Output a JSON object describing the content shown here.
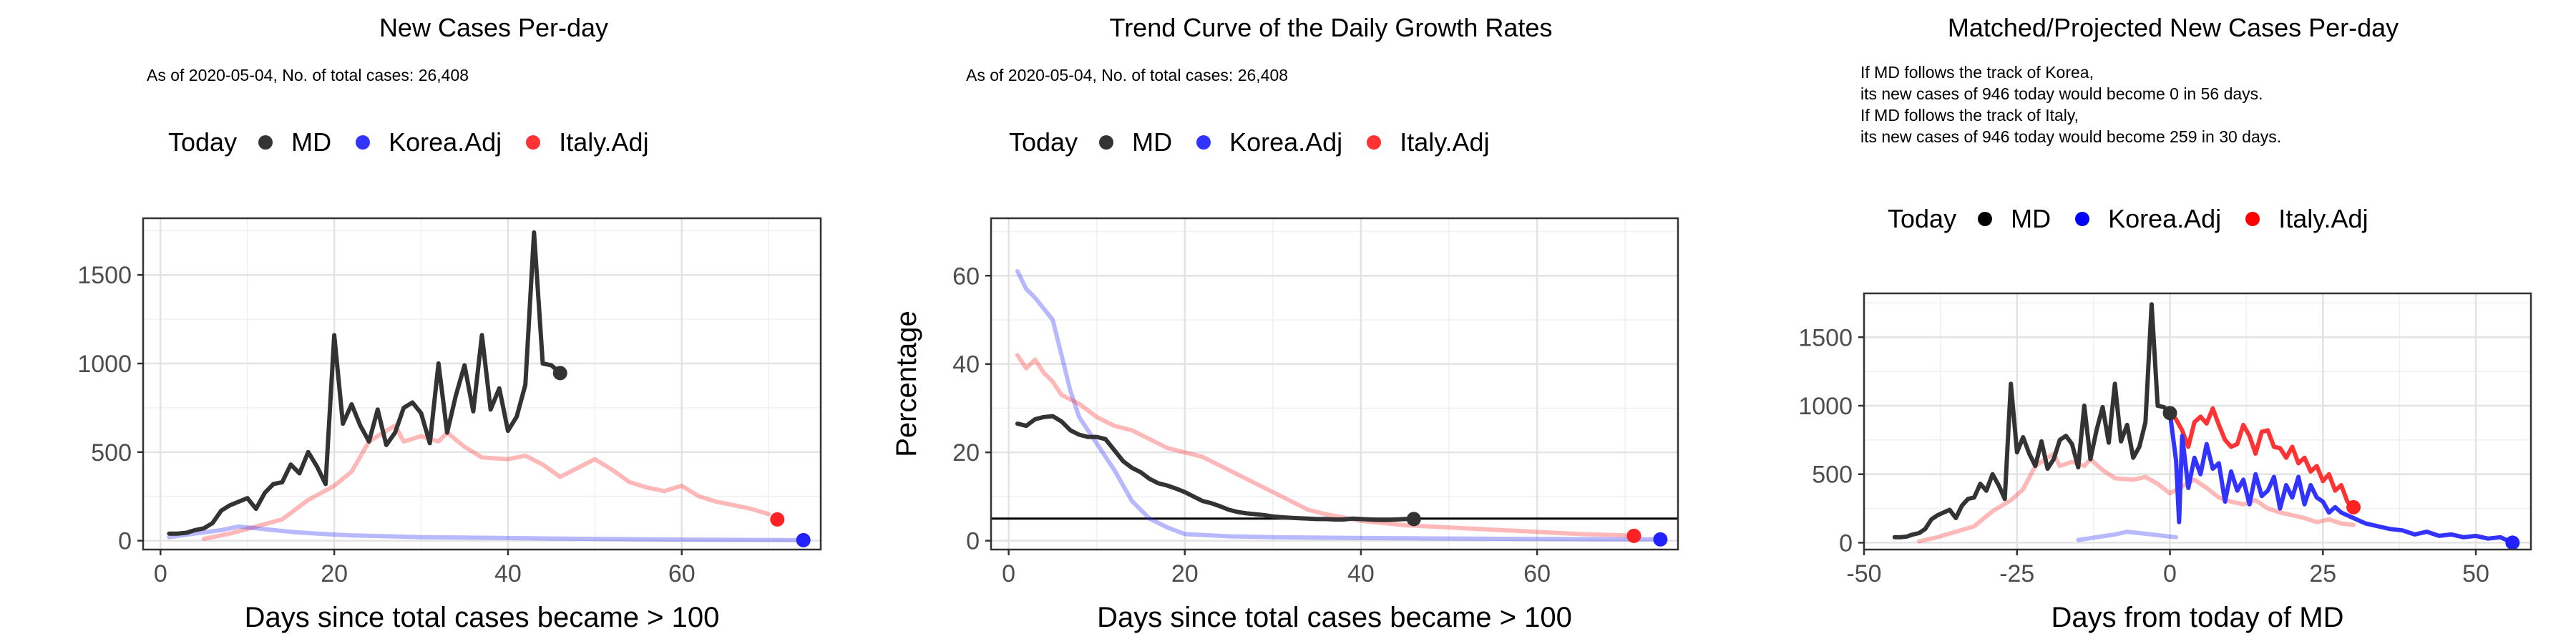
{
  "colors": {
    "MD": "#333333",
    "Korea.Adj": "#3333ff",
    "Italy.Adj": "#ff3333"
  },
  "chart_data": [
    {
      "type": "line",
      "title": "New Cases Per-day",
      "subtitle": "As of 2020-05-04, No. of total cases: 26,408",
      "xlabel": "Days since total cases became > 100",
      "ylabel": "",
      "xlim": [
        -2,
        76
      ],
      "ylim": [
        -50,
        1820
      ],
      "xticks": [
        0,
        20,
        40,
        60
      ],
      "yticks": [
        0,
        500,
        1000,
        1500
      ],
      "legend": {
        "title": "Today",
        "entries": [
          "MD",
          "Korea.Adj",
          "Italy.Adj"
        ],
        "position": "top"
      },
      "hline": null,
      "series": [
        {
          "name": "Italy.Adj",
          "color": "#ff3333",
          "opacity": 0.35,
          "x": [
            5,
            8,
            11,
            14,
            17,
            20,
            22,
            24,
            26,
            27,
            28,
            30,
            32,
            33,
            35,
            37,
            40,
            42,
            44,
            46,
            48,
            50,
            52,
            54,
            56,
            58,
            60,
            62,
            64,
            66,
            68,
            70
          ],
          "y": [
            10,
            40,
            80,
            120,
            230,
            310,
            390,
            560,
            620,
            650,
            560,
            590,
            560,
            610,
            530,
            470,
            460,
            480,
            430,
            360,
            410,
            460,
            400,
            330,
            300,
            280,
            310,
            250,
            220,
            200,
            180,
            150
          ]
        },
        {
          "name": "Korea.Adj",
          "color": "#3333ff",
          "opacity": 0.35,
          "x": [
            1,
            4,
            7,
            9,
            11,
            13,
            15,
            18,
            22,
            26,
            30,
            35,
            40,
            45,
            50,
            55,
            60,
            65,
            70,
            74
          ],
          "y": [
            20,
            40,
            60,
            80,
            70,
            60,
            50,
            40,
            30,
            25,
            20,
            18,
            15,
            12,
            10,
            8,
            6,
            5,
            4,
            3
          ]
        },
        {
          "name": "MD",
          "color": "#333333",
          "opacity": 1,
          "x": [
            1,
            2,
            3,
            4,
            5,
            6,
            7,
            8,
            9,
            10,
            11,
            12,
            13,
            14,
            15,
            16,
            17,
            18,
            19,
            20,
            21,
            22,
            23,
            24,
            25,
            26,
            27,
            28,
            29,
            30,
            31,
            32,
            33,
            34,
            35,
            36,
            37,
            38,
            39,
            40,
            41,
            42,
            43,
            44,
            45,
            46
          ],
          "y": [
            40,
            40,
            45,
            60,
            70,
            100,
            170,
            200,
            220,
            240,
            180,
            270,
            320,
            330,
            430,
            380,
            500,
            420,
            320,
            1160,
            660,
            770,
            650,
            560,
            740,
            540,
            610,
            750,
            780,
            720,
            550,
            1000,
            610,
            820,
            990,
            730,
            1160,
            740,
            860,
            620,
            700,
            880,
            1740,
            1000,
            990,
            946
          ]
        }
      ],
      "today_points": [
        {
          "name": "MD",
          "x": 46,
          "y": 946
        },
        {
          "name": "Korea.Adj",
          "x": 74,
          "y": 3
        },
        {
          "name": "Italy.Adj",
          "x": 71,
          "y": 120
        }
      ]
    },
    {
      "type": "line",
      "title": "Trend Curve of the Daily Growth Rates",
      "subtitle": "As of 2020-05-04, No. of total cases: 26,408",
      "xlabel": "Days since total cases became > 100",
      "ylabel": "Percentage",
      "xlim": [
        -2,
        76
      ],
      "ylim": [
        -2,
        73
      ],
      "xticks": [
        0,
        20,
        40,
        60
      ],
      "yticks": [
        0,
        20,
        40,
        60
      ],
      "legend": {
        "title": "Today",
        "entries": [
          "MD",
          "Korea.Adj",
          "Italy.Adj"
        ],
        "position": "top"
      },
      "hline": 5,
      "series": [
        {
          "name": "Korea.Adj",
          "color": "#3333ff",
          "opacity": 0.35,
          "x": [
            1,
            2,
            3,
            5,
            6,
            7,
            8,
            10,
            12,
            14,
            16,
            18,
            20,
            25,
            30,
            40,
            50,
            60,
            70,
            74
          ],
          "y": [
            61,
            57,
            55,
            50,
            42,
            34,
            28,
            22,
            16,
            9,
            5,
            3,
            1.5,
            1,
            0.8,
            0.6,
            0.5,
            0.4,
            0.3,
            0.3
          ]
        },
        {
          "name": "Italy.Adj",
          "color": "#ff3333",
          "opacity": 0.35,
          "x": [
            1,
            2,
            3,
            4,
            5,
            6,
            8,
            10,
            12,
            14,
            16,
            18,
            20,
            22,
            24,
            26,
            28,
            30,
            32,
            34,
            36,
            40,
            45,
            50,
            55,
            60,
            65,
            70,
            71
          ],
          "y": [
            42,
            39,
            41,
            38,
            36,
            33,
            31,
            28,
            26,
            25,
            23,
            21,
            20,
            19,
            17,
            15,
            13,
            11,
            9,
            7,
            6,
            4.5,
            3.5,
            3,
            2.5,
            2,
            1.5,
            1.2,
            1.1
          ]
        },
        {
          "name": "MD",
          "color": "#333333",
          "opacity": 1,
          "x": [
            1,
            2,
            3,
            4,
            5,
            6,
            7,
            8,
            9,
            10,
            11,
            12,
            13,
            14,
            15,
            16,
            17,
            18,
            19,
            20,
            21,
            22,
            23,
            24,
            25,
            26,
            27,
            28,
            29,
            30,
            31,
            32,
            33,
            34,
            35,
            36,
            37,
            38,
            39,
            40,
            41,
            42,
            43,
            44,
            45,
            46
          ],
          "y": [
            26.5,
            26,
            27.5,
            28,
            28.2,
            27,
            25,
            24,
            23.5,
            23.5,
            23,
            20.5,
            18,
            16.5,
            15.5,
            14,
            13,
            12.5,
            11.8,
            11,
            10,
            9,
            8.5,
            7.8,
            7,
            6.5,
            6.2,
            6,
            5.8,
            5.5,
            5.3,
            5.2,
            5.1,
            5,
            4.9,
            4.9,
            4.8,
            4.8,
            5,
            4.9,
            4.8,
            4.7,
            4.7,
            4.8,
            4.9,
            4.9
          ]
        }
      ],
      "today_points": [
        {
          "name": "MD",
          "x": 46,
          "y": 4.9
        },
        {
          "name": "Korea.Adj",
          "x": 74,
          "y": 0.3
        },
        {
          "name": "Italy.Adj",
          "x": 71,
          "y": 1.1
        }
      ]
    },
    {
      "type": "line",
      "title": "Matched/Projected New Cases Per-day",
      "subtitle": "If MD follows the track of Korea,\nits new cases of 946 today would become 0 in 56 days.\nIf MD follows the track of Italy,\nits new cases of 946 today would become 259 in 30 days.",
      "xlabel": "Days from today of MD",
      "ylabel": "",
      "xlim": [
        -50,
        59
      ],
      "ylim": [
        -50,
        1820
      ],
      "xticks": [
        -50,
        -25,
        0,
        25,
        50
      ],
      "yticks": [
        0,
        500,
        1000,
        1500
      ],
      "legend": {
        "title": "Today",
        "entries": [
          "MD",
          "Korea.Adj",
          "Italy.Adj"
        ],
        "position": "top"
      },
      "hline": null,
      "series": [
        {
          "name": "Italy.Adj (past)",
          "color": "#ff3333",
          "opacity": 0.35,
          "x": [
            -41,
            -38,
            -35,
            -32,
            -29,
            -26,
            -24,
            -22,
            -20,
            -19,
            -18,
            -16,
            -14,
            -13,
            -11,
            -9,
            -6,
            -4,
            -2,
            0,
            2,
            4,
            6,
            8,
            10,
            12,
            14,
            16,
            18,
            20,
            22,
            24,
            26,
            28,
            30
          ],
          "y": [
            10,
            40,
            80,
            120,
            230,
            310,
            390,
            560,
            620,
            650,
            560,
            590,
            560,
            610,
            530,
            470,
            460,
            480,
            430,
            360,
            410,
            460,
            400,
            330,
            300,
            280,
            310,
            250,
            220,
            200,
            180,
            150,
            170,
            140,
            130
          ]
        },
        {
          "name": "Korea.Adj (past)",
          "color": "#3333ff",
          "opacity": 0.35,
          "x": [
            -15,
            -12,
            -9,
            -7,
            -5,
            -3,
            -1,
            1
          ],
          "y": [
            20,
            40,
            60,
            80,
            70,
            60,
            50,
            40
          ]
        },
        {
          "name": "MD",
          "color": "#333333",
          "opacity": 1,
          "x": [
            -45,
            -44,
            -43,
            -42,
            -41,
            -40,
            -39,
            -38,
            -37,
            -36,
            -35,
            -34,
            -33,
            -32,
            -31,
            -30,
            -29,
            -28,
            -27,
            -26,
            -25,
            -24,
            -23,
            -22,
            -21,
            -20,
            -19,
            -18,
            -17,
            -16,
            -15,
            -14,
            -13,
            -12,
            -11,
            -10,
            -9,
            -8,
            -7,
            -6,
            -5,
            -4,
            -3,
            -2,
            -1,
            0
          ],
          "y": [
            40,
            40,
            45,
            60,
            70,
            100,
            170,
            200,
            220,
            240,
            180,
            270,
            320,
            330,
            430,
            380,
            500,
            420,
            320,
            1160,
            660,
            770,
            650,
            560,
            740,
            540,
            610,
            750,
            780,
            720,
            550,
            1000,
            610,
            820,
            990,
            730,
            1160,
            740,
            860,
            620,
            700,
            880,
            1740,
            1000,
            990,
            946
          ]
        },
        {
          "name": "Italy.Adj (projected)",
          "color": "#ff3333",
          "opacity": 1,
          "x": [
            0,
            1,
            2,
            3,
            4,
            5,
            6,
            7,
            8,
            9,
            10,
            11,
            12,
            13,
            14,
            15,
            16,
            17,
            18,
            19,
            20,
            21,
            22,
            23,
            24,
            25,
            26,
            27,
            28,
            29,
            30
          ],
          "y": [
            946,
            900,
            820,
            700,
            880,
            920,
            870,
            980,
            860,
            750,
            700,
            720,
            860,
            780,
            650,
            810,
            820,
            700,
            690,
            620,
            700,
            580,
            620,
            520,
            560,
            450,
            500,
            380,
            420,
            300,
            259
          ]
        },
        {
          "name": "Korea.Adj (projected)",
          "color": "#3333ff",
          "opacity": 1,
          "x": [
            0,
            1,
            1.5,
            2,
            3,
            4,
            5,
            6,
            7,
            8,
            9,
            10,
            11,
            12,
            13,
            14,
            15,
            16,
            17,
            18,
            19,
            20,
            21,
            22,
            23,
            24,
            25,
            26,
            27,
            28,
            30,
            32,
            34,
            36,
            38,
            40,
            42,
            44,
            46,
            48,
            50,
            52,
            54,
            56
          ],
          "y": [
            946,
            600,
            150,
            780,
            400,
            620,
            500,
            720,
            540,
            580,
            300,
            520,
            380,
            460,
            280,
            500,
            340,
            380,
            480,
            250,
            420,
            330,
            480,
            280,
            420,
            330,
            300,
            220,
            260,
            220,
            180,
            140,
            120,
            100,
            90,
            60,
            80,
            50,
            60,
            40,
            50,
            30,
            40,
            0
          ]
        }
      ],
      "today_points": [
        {
          "name": "MD",
          "x": 0,
          "y": 946
        },
        {
          "name": "Korea.Adj",
          "x": 56,
          "y": 0
        },
        {
          "name": "Italy.Adj",
          "x": 30,
          "y": 259
        }
      ]
    }
  ]
}
